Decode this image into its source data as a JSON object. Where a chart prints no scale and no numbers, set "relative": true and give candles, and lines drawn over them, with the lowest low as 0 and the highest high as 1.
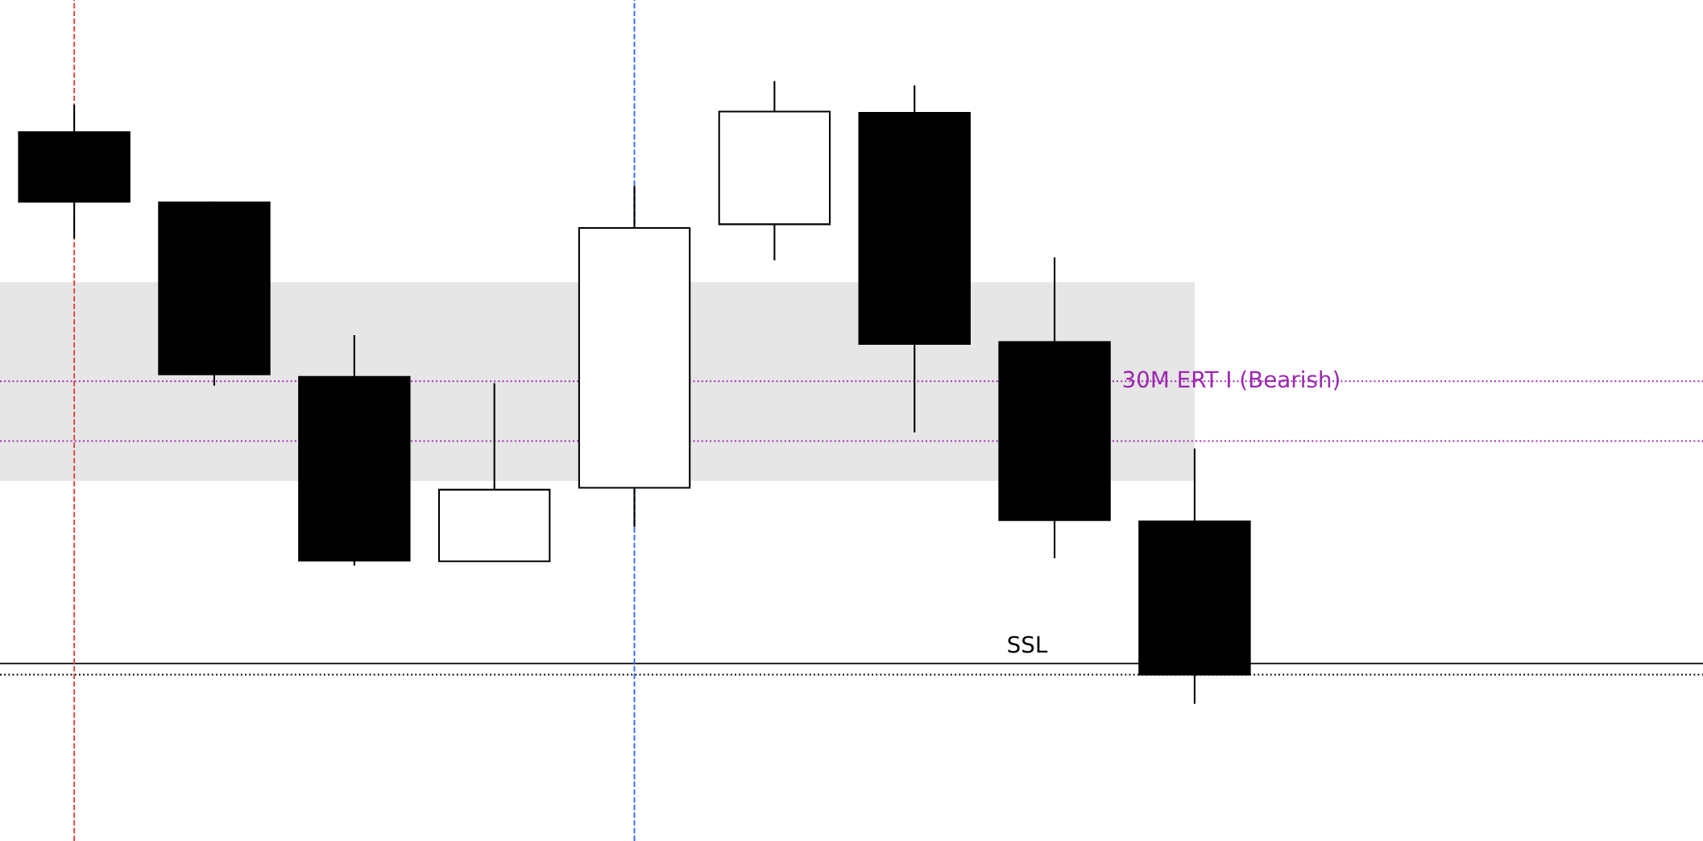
{
  "chart_data": {
    "type": "candlestick",
    "relative": true,
    "categories": [
      null,
      null,
      null,
      null,
      null,
      null,
      null,
      null,
      null
    ],
    "ohlc": [
      [
        0.918,
        0.962,
        0.747,
        0.806
      ],
      [
        0.805,
        0.806,
        0.511,
        0.529
      ],
      [
        0.525,
        0.592,
        0.222,
        0.23
      ],
      [
        0.229,
        0.515,
        0.229,
        0.344
      ],
      [
        0.347,
        0.832,
        0.284,
        0.764
      ],
      [
        0.77,
        1,
        0.712,
        0.951
      ],
      [
        0.949,
        0.993,
        0.436,
        0.578
      ],
      [
        0.581,
        0.717,
        0.234,
        0.295
      ],
      [
        0.293,
        0.41,
        0,
        0.047
      ]
    ],
    "ref_lines": [
      {
        "axis": "y",
        "value": 0.518,
        "label": "30M ERT I (Bearish)",
        "color": "#9c27b0",
        "line_style": "dotted"
      },
      {
        "axis": "y",
        "value": 0.065,
        "label": "SSL",
        "color": "#000000",
        "line_style": "solid"
      },
      {
        "axis": "y",
        "value": 0.047,
        "color": "#000000",
        "line_style": "dotted"
      },
      {
        "axis": "y",
        "value": 0.422,
        "color": "#9c27b0",
        "line_style": "dotted"
      }
    ],
    "bands": [
      {
        "axis": "y",
        "from": 0.358,
        "to": 0.677,
        "color": "#e6e6e6"
      }
    ],
    "legend": false
  }
}
